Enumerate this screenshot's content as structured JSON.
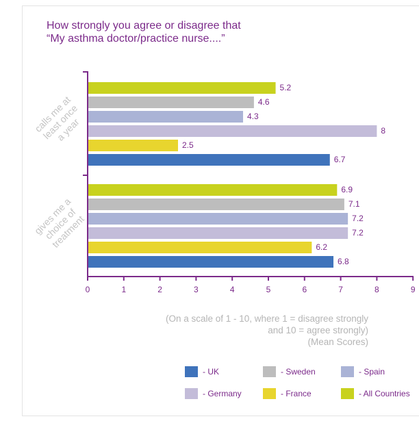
{
  "chart_data": {
    "type": "bar",
    "orientation": "horizontal",
    "title_lines": [
      "How strongly you agree or disagree that",
      "“My asthma doctor/practice nurse....”"
    ],
    "categories": [
      {
        "label_lines": [
          "calls me at",
          "least once",
          "a year"
        ]
      },
      {
        "label_lines": [
          "gives me a",
          "choice of",
          "treatment"
        ]
      }
    ],
    "series": [
      {
        "name": "All Countries",
        "color": "#c8d21e",
        "values": [
          5.2,
          6.9
        ]
      },
      {
        "name": "Sweden",
        "color": "#bdbdbd",
        "values": [
          4.6,
          7.1
        ]
      },
      {
        "name": "Spain",
        "color": "#aab3d6",
        "values": [
          4.3,
          7.2
        ]
      },
      {
        "name": "Germany",
        "color": "#c3bcd9",
        "values": [
          8,
          7.2
        ]
      },
      {
        "name": "France",
        "color": "#e8d52e",
        "values": [
          2.5,
          6.2
        ]
      },
      {
        "name": "UK",
        "color": "#3f73bb",
        "values": [
          6.7,
          6.8
        ]
      }
    ],
    "value_labels": [
      [
        "5.2",
        "4.6",
        "4.3",
        "8",
        "2.5",
        "6.7"
      ],
      [
        "6.9",
        "7.1",
        "7.2",
        "7.2",
        "6.2",
        "6.8"
      ]
    ],
    "xlim": [
      0,
      9
    ],
    "xticks": [
      "0",
      "1",
      "2",
      "3",
      "4",
      "5",
      "6",
      "7",
      "8",
      "9"
    ],
    "grid": false,
    "note_lines": [
      "(On a scale of 1 - 10, where 1 = disagree strongly",
      "and 10 = agree strongly)",
      "(Mean Scores)"
    ],
    "legend": {
      "placement": "bottom",
      "items": [
        {
          "label": "- UK",
          "color": "#3f73bb"
        },
        {
          "label": "- Sweden",
          "color": "#bdbdbd"
        },
        {
          "label": "- Spain",
          "color": "#aab3d6"
        },
        {
          "label": "- Germany",
          "color": "#c3bcd9"
        },
        {
          "label": "- France",
          "color": "#e8d52e"
        },
        {
          "label": "- All Countries",
          "color": "#c8d21e"
        }
      ]
    },
    "colors": {
      "title": "#7b2a8a",
      "axis": "#7b2a8a",
      "value_label": "#7b2a8a",
      "category_label": "#c4c4c4",
      "note": "#b5b5b5"
    }
  }
}
